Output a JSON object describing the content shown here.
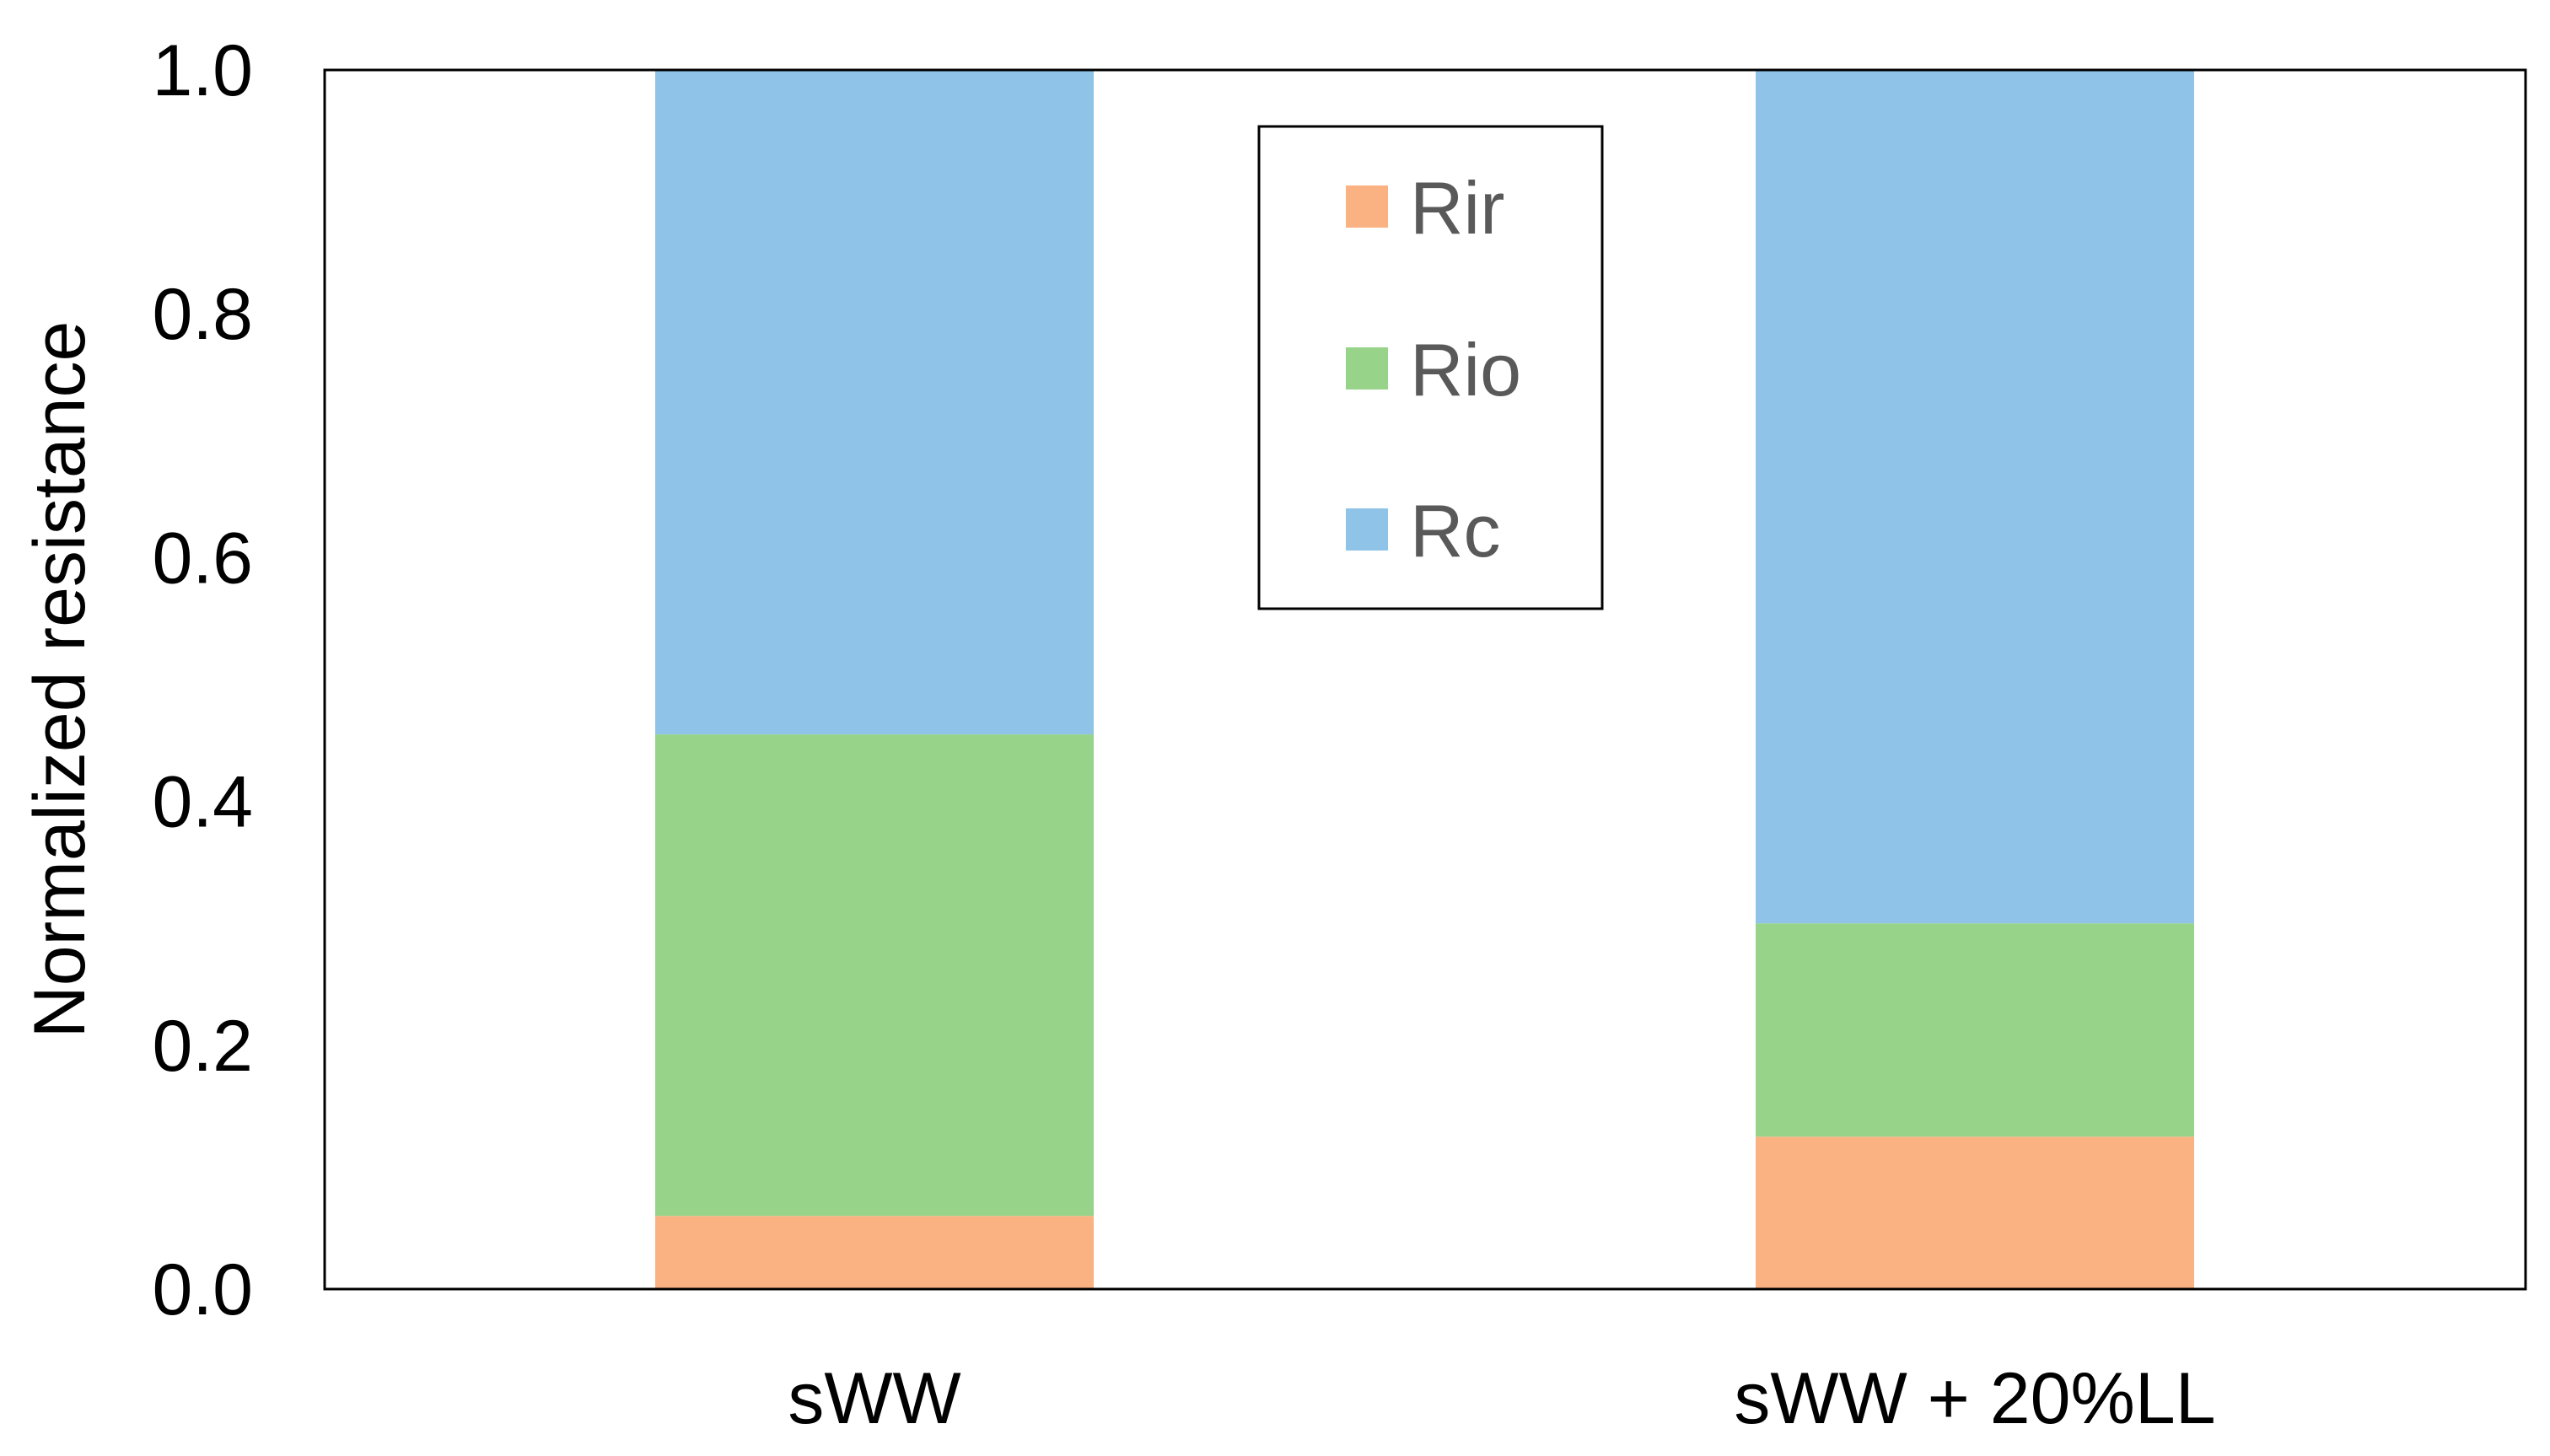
{
  "chart_data": {
    "type": "bar",
    "stacked": true,
    "categories": [
      "sWW",
      "sWW + 20%LL"
    ],
    "series": [
      {
        "name": "Rir",
        "values": [
          0.06,
          0.125
        ],
        "color": "#FBB282"
      },
      {
        "name": "Rio",
        "values": [
          0.395,
          0.175
        ],
        "color": "#97D48A"
      },
      {
        "name": "Rc",
        "values": [
          0.545,
          0.7
        ],
        "color": "#8FC4E8"
      }
    ],
    "title": "",
    "xlabel": "",
    "ylabel": "Normalized resistance",
    "ylim": [
      0,
      1.0
    ],
    "yticks": [
      "0.0",
      "0.2",
      "0.4",
      "0.6",
      "0.8",
      "1.0"
    ],
    "grid": false,
    "legend_position": "top-center"
  }
}
